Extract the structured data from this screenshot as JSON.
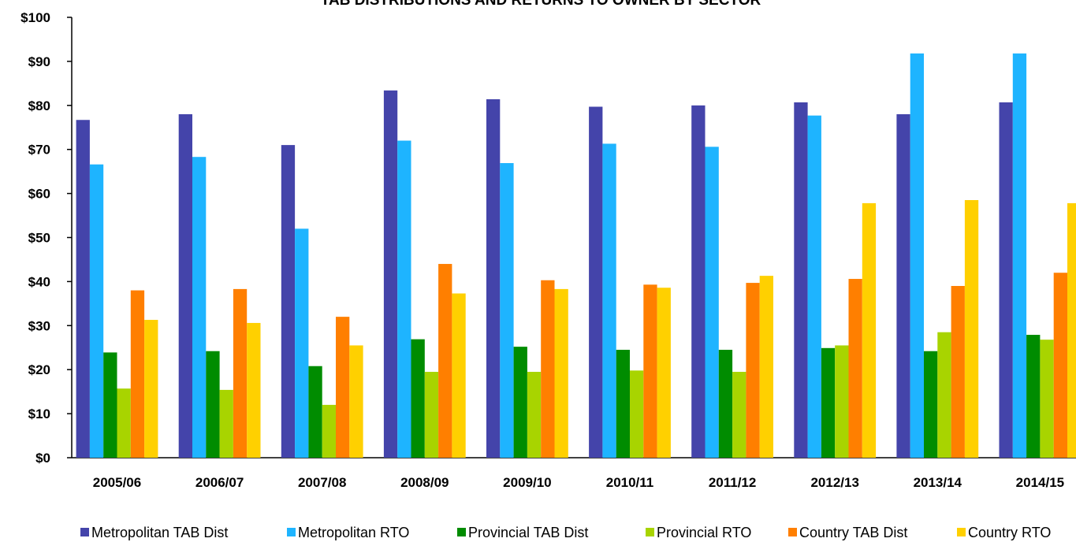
{
  "chart_data": {
    "type": "bar",
    "title": "TAB DISTRIBUTIONS AND RETURNS TO OWNER BY SECTOR",
    "xlabel": "",
    "ylabel": "",
    "ylim": [
      0,
      100
    ],
    "y_ticks": [
      "$0",
      "$10",
      "$20",
      "$30",
      "$40",
      "$50",
      "$60",
      "$70",
      "$80",
      "$90",
      "$100"
    ],
    "grid": false,
    "legend_position": "bottom",
    "categories": [
      "2005/06",
      "2006/07",
      "2007/08",
      "2008/09",
      "2009/10",
      "2010/11",
      "2011/12",
      "2012/13",
      "2013/14",
      "2014/15"
    ],
    "series": [
      {
        "name": "Metropolitan TAB Dist",
        "color": "#4444aa",
        "values": [
          76.7,
          78.0,
          71.0,
          83.4,
          81.4,
          79.7,
          80.0,
          80.7,
          78.0,
          80.7
        ]
      },
      {
        "name": "Metropolitan RTO",
        "color": "#1eb4ff",
        "values": [
          66.6,
          68.3,
          52.0,
          72.0,
          66.9,
          71.3,
          70.6,
          77.7,
          91.8,
          91.8
        ]
      },
      {
        "name": "Provincial TAB Dist",
        "color": "#008c00",
        "values": [
          23.9,
          24.2,
          20.8,
          26.9,
          25.2,
          24.5,
          24.5,
          24.9,
          24.2,
          27.9
        ]
      },
      {
        "name": "Provincial RTO",
        "color": "#a8d400",
        "values": [
          15.7,
          15.4,
          12.0,
          19.5,
          19.5,
          19.8,
          19.5,
          25.5,
          28.5,
          26.8
        ]
      },
      {
        "name": "Country TAB Dist",
        "color": "#ff7f00",
        "values": [
          38.0,
          38.3,
          32.0,
          44.0,
          40.3,
          39.3,
          39.7,
          40.6,
          39.0,
          42.0
        ]
      },
      {
        "name": "Country RTO",
        "color": "#ffd000",
        "values": [
          31.3,
          30.6,
          25.5,
          37.3,
          38.3,
          38.6,
          41.3,
          57.8,
          58.5,
          57.8
        ]
      }
    ]
  }
}
